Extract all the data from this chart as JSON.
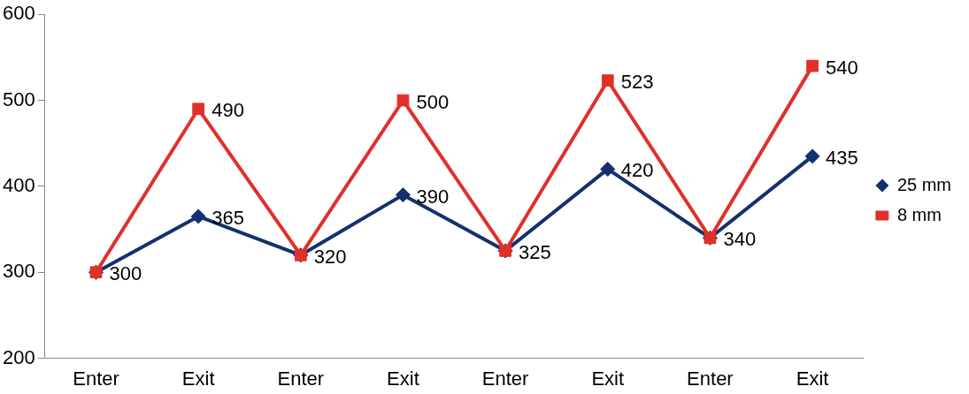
{
  "chart_data": {
    "type": "line",
    "categories": [
      "Enter",
      "Exit",
      "Enter",
      "Exit",
      "Enter",
      "Exit",
      "Enter",
      "Exit"
    ],
    "series": [
      {
        "name": "25 mm",
        "color": "#14306e",
        "marker": "diamond",
        "values": [
          300,
          365,
          320,
          390,
          325,
          420,
          340,
          435
        ],
        "value_labels": [
          "300",
          "365",
          "320",
          "390",
          "325",
          "420",
          "340",
          "435"
        ]
      },
      {
        "name": "8 mm",
        "color": "#e0302a",
        "marker": "square",
        "values": [
          300,
          490,
          320,
          500,
          325,
          523,
          340,
          540
        ],
        "value_labels": [
          null,
          "490",
          null,
          "500",
          null,
          "523",
          null,
          "540"
        ]
      }
    ],
    "ylim": [
      200,
      600
    ],
    "yticks": [
      200,
      300,
      400,
      500,
      600
    ],
    "grid": false,
    "legend": "right"
  }
}
